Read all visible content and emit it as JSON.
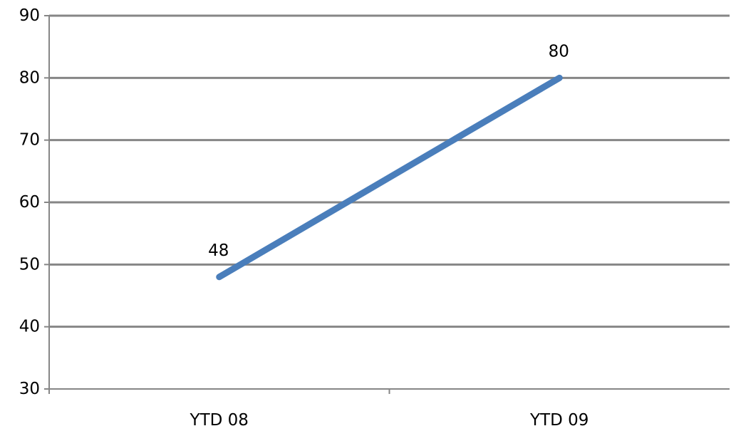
{
  "chart_data": {
    "type": "line",
    "categories": [
      "YTD 08",
      "YTD 09"
    ],
    "series": [
      {
        "values": [
          48,
          80
        ],
        "color": "#4a7ebb"
      }
    ],
    "data_labels": [
      "48",
      "80"
    ],
    "y_ticks": [
      "30",
      "40",
      "50",
      "60",
      "70",
      "80",
      "90"
    ],
    "ylim": [
      30,
      90
    ],
    "grid": true,
    "legend": "none",
    "title": "",
    "xlabel": "",
    "ylabel": ""
  }
}
